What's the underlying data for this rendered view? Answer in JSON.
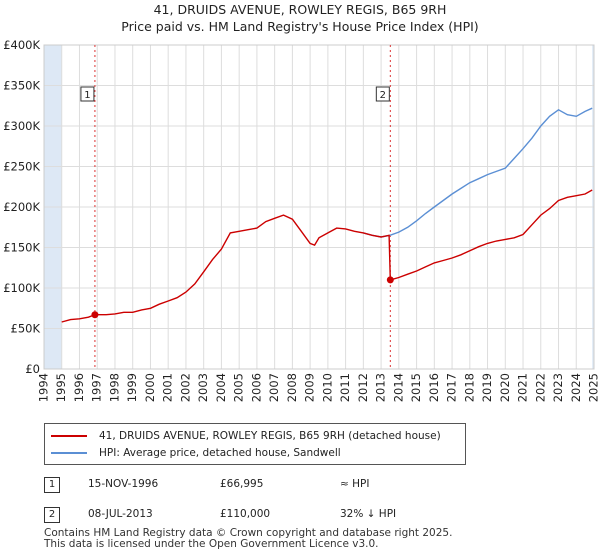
{
  "title": "41, DRUIDS AVENUE, ROWLEY REGIS, B65 9RH",
  "subtitle": "Price paid vs. HM Land Registry's House Price Index (HPI)",
  "colors": {
    "property": "#cc0000",
    "hpi": "#5b8fd4",
    "shade": "#dde8f5",
    "grid": "#dddddd",
    "marker_line": "#dd3333"
  },
  "chart_data": {
    "type": "line",
    "title": "41, DRUIDS AVENUE, ROWLEY REGIS, B65 9RH",
    "subtitle": "Price paid vs. HM Land Registry's House Price Index (HPI)",
    "xlim": [
      1994,
      2025
    ],
    "ylim": [
      0,
      400000
    ],
    "y_ticks": [
      0,
      50000,
      100000,
      150000,
      200000,
      250000,
      300000,
      350000,
      400000
    ],
    "y_tick_labels": [
      "£0",
      "£50K",
      "£100K",
      "£150K",
      "£200K",
      "£250K",
      "£300K",
      "£350K",
      "£400K"
    ],
    "x_ticks": [
      1994,
      1995,
      1996,
      1997,
      1998,
      1999,
      2000,
      2001,
      2002,
      2003,
      2004,
      2005,
      2006,
      2007,
      2008,
      2009,
      2010,
      2011,
      2012,
      2013,
      2014,
      2015,
      2016,
      2017,
      2018,
      2019,
      2020,
      2021,
      2022,
      2023,
      2024,
      2025
    ],
    "x_tick_labels": [
      "1994",
      "1995",
      "1996",
      "1997",
      "1998",
      "1999",
      "2000",
      "2001",
      "2002",
      "2003",
      "2004",
      "2005",
      "2006",
      "2007",
      "2008",
      "2009",
      "2010",
      "2011",
      "2012",
      "2013",
      "2014",
      "2015",
      "2016",
      "2017",
      "2018",
      "2019",
      "2020",
      "2021",
      "2022",
      "2023",
      "2024",
      "2025"
    ],
    "shaded_ranges": [
      [
        1994,
        1995.0
      ],
      [
        2024.9,
        2025
      ]
    ],
    "series": [
      {
        "name": "41, DRUIDS AVENUE, ROWLEY REGIS, B65 9RH (detached house)",
        "color": "#cc0000",
        "x": [
          1995.0,
          1995.5,
          1996.0,
          1996.5,
          1996.87,
          1997.5,
          1998.0,
          1998.5,
          1999.0,
          1999.5,
          2000.0,
          2000.5,
          2001.0,
          2001.5,
          2002.0,
          2002.5,
          2003.0,
          2003.5,
          2004.0,
          2004.5,
          2005.0,
          2005.5,
          2006.0,
          2006.5,
          2007.0,
          2007.5,
          2008.0,
          2008.5,
          2009.0,
          2009.25,
          2009.5,
          2010.0,
          2010.5,
          2011.0,
          2011.5,
          2012.0,
          2012.5,
          2013.0,
          2013.45,
          2013.52,
          2014.0,
          2014.5,
          2015.0,
          2015.5,
          2016.0,
          2016.5,
          2017.0,
          2017.5,
          2018.0,
          2018.5,
          2019.0,
          2019.5,
          2020.0,
          2020.5,
          2021.0,
          2021.5,
          2022.0,
          2022.5,
          2023.0,
          2023.5,
          2024.0,
          2024.5,
          2024.9
        ],
        "y": [
          58000,
          61000,
          62000,
          64000,
          66995,
          67000,
          68000,
          70000,
          70000,
          73000,
          75000,
          80000,
          84000,
          88000,
          95000,
          105000,
          120000,
          135000,
          148000,
          168000,
          170000,
          172000,
          174000,
          182000,
          186000,
          190000,
          185000,
          170000,
          155000,
          153000,
          162000,
          168000,
          174000,
          173000,
          170000,
          168000,
          165000,
          163000,
          165000,
          110000,
          113000,
          117000,
          121000,
          126000,
          131000,
          134000,
          137000,
          141000,
          146000,
          151000,
          155000,
          158000,
          160000,
          162000,
          166000,
          178000,
          190000,
          198000,
          208000,
          212000,
          214000,
          216000,
          221000
        ]
      },
      {
        "name": "HPI: Average price, detached house, Sandwell",
        "color": "#5b8fd4",
        "x": [
          2012.0,
          2012.5,
          2013.0,
          2013.5,
          2014.0,
          2014.5,
          2015.0,
          2015.5,
          2016.0,
          2016.5,
          2017.0,
          2017.5,
          2018.0,
          2018.5,
          2019.0,
          2019.5,
          2020.0,
          2020.5,
          2021.0,
          2021.5,
          2022.0,
          2022.5,
          2023.0,
          2023.5,
          2024.0,
          2024.5,
          2024.9
        ],
        "y": [
          168000,
          165000,
          163000,
          165000,
          169000,
          175000,
          183000,
          192000,
          200000,
          208000,
          216000,
          223000,
          230000,
          235000,
          240000,
          244000,
          248000,
          260000,
          272000,
          285000,
          300000,
          312000,
          320000,
          314000,
          312000,
          318000,
          322000
        ]
      }
    ],
    "sale_markers": [
      {
        "label": "1",
        "x": 1996.87,
        "y": 66995
      },
      {
        "label": "2",
        "x": 2013.52,
        "y": 110000
      }
    ]
  },
  "legend": {
    "property_label": "41, DRUIDS AVENUE, ROWLEY REGIS, B65 9RH (detached house)",
    "hpi_label": "HPI: Average price, detached house, Sandwell"
  },
  "sales": [
    {
      "num": "1",
      "date": "15-NOV-1996",
      "price": "£66,995",
      "hpi": "≈ HPI"
    },
    {
      "num": "2",
      "date": "08-JUL-2013",
      "price": "£110,000",
      "hpi": "32% ↓ HPI"
    }
  ],
  "footer": {
    "line1": "Contains HM Land Registry data © Crown copyright and database right 2025.",
    "line2": "This data is licensed under the Open Government Licence v3.0."
  }
}
